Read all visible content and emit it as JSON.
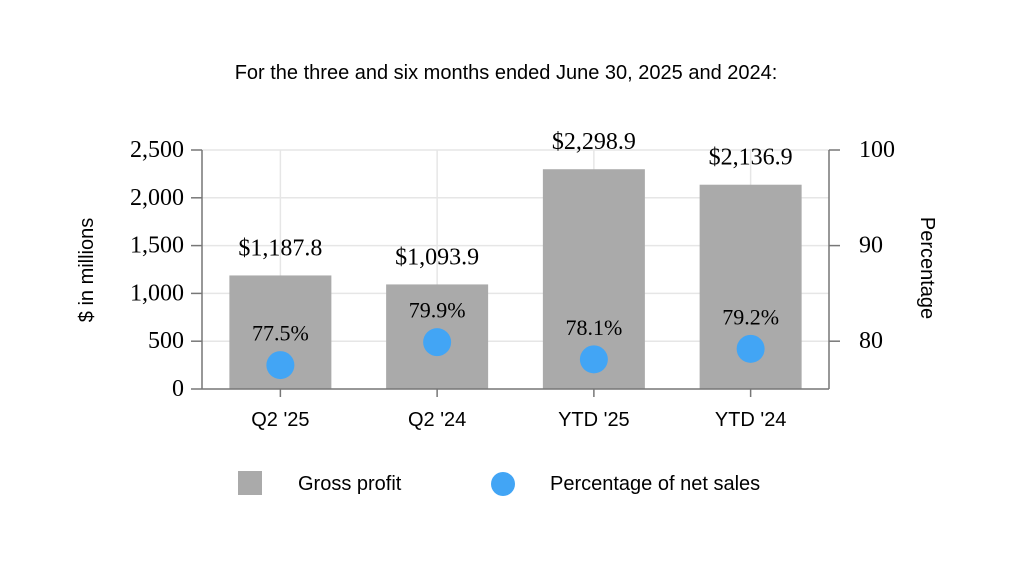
{
  "chart_data": {
    "type": "bar",
    "title": "For the three and six months ended June 30, 2025 and 2024:",
    "categories": [
      "Q2 '25",
      "Q2 '24",
      "YTD '25",
      "YTD '24"
    ],
    "series": [
      {
        "name": "Gross profit",
        "axis": "left",
        "mark": "bar",
        "values": [
          1187.8,
          1093.9,
          2298.9,
          2136.9
        ],
        "labels": [
          "$1,187.8",
          "$1,093.9",
          "$2,298.9",
          "$2,136.9"
        ],
        "color": "#aaaaaa"
      },
      {
        "name": "Percentage of net sales",
        "axis": "right",
        "mark": "point",
        "values": [
          77.5,
          79.9,
          78.1,
          79.2
        ],
        "labels": [
          "77.5%",
          "79.9%",
          "78.1%",
          "79.2%"
        ],
        "color": "#42a5f5"
      }
    ],
    "ylabel": "$ in millions",
    "ylim": [
      0,
      2500
    ],
    "yticks": [
      "0",
      "500",
      "1,000",
      "1,500",
      "2,000",
      "2,500"
    ],
    "ytick_values": [
      0,
      500,
      1000,
      1500,
      2000,
      2500
    ],
    "y2label": "Percentage",
    "y2lim": [
      75,
      100
    ],
    "y2ticks": [
      "80",
      "90",
      "100"
    ],
    "y2tick_values": [
      80,
      90,
      100
    ],
    "grid": true,
    "legend_position": "bottom"
  }
}
